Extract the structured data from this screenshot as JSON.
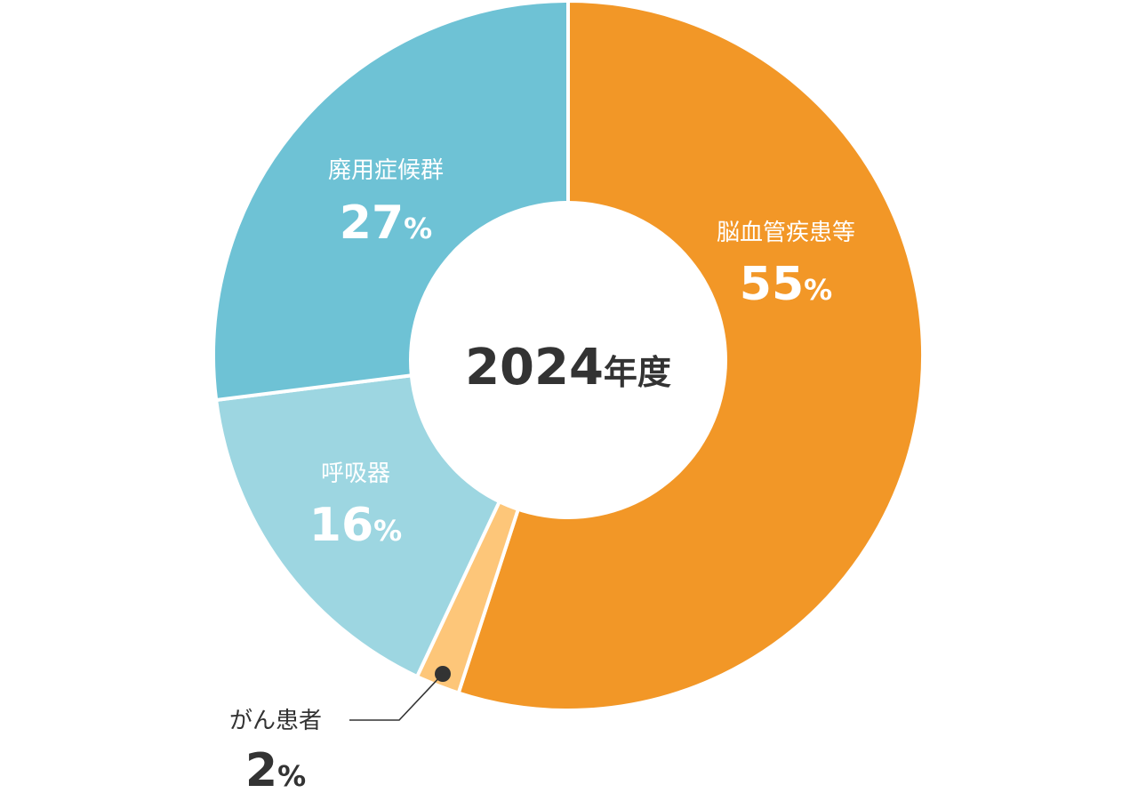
{
  "chart_data": {
    "type": "pie",
    "center_label": "2024年度",
    "percent_symbol": "%",
    "slices": [
      {
        "label": "脳血管疾患等",
        "value": 55,
        "color": "#F29727"
      },
      {
        "label": "がん患者",
        "value": 2,
        "color": "#FDC679"
      },
      {
        "label": "呼吸器",
        "value": 16,
        "color": "#9DD6E1"
      },
      {
        "label": "廃用症候群",
        "value": 27,
        "color": "#6EC2D5"
      }
    ]
  }
}
